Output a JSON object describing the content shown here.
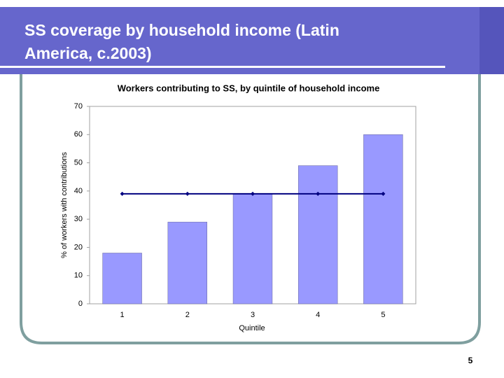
{
  "slide": {
    "title_lines": [
      "SS coverage by household income (Latin",
      "America, c.2003)"
    ],
    "page_number": "5"
  },
  "chart_data": {
    "type": "bar-line",
    "title": "Workers contributing to SS, by quintile of household income",
    "x_label": "Quintile",
    "y_label": "% of workers with contributions",
    "categories": [
      "1",
      "2",
      "3",
      "4",
      "5"
    ],
    "series": [
      {
        "type": "bar",
        "color": "#9999ff",
        "values": [
          18,
          29,
          39,
          49,
          60
        ]
      },
      {
        "type": "line",
        "color": "#000080",
        "values": [
          39,
          39,
          39,
          39,
          39
        ]
      }
    ],
    "ylim": [
      0,
      70
    ],
    "yticks": [
      0,
      10,
      20,
      30,
      40,
      50,
      60,
      70
    ],
    "grid": false
  }
}
